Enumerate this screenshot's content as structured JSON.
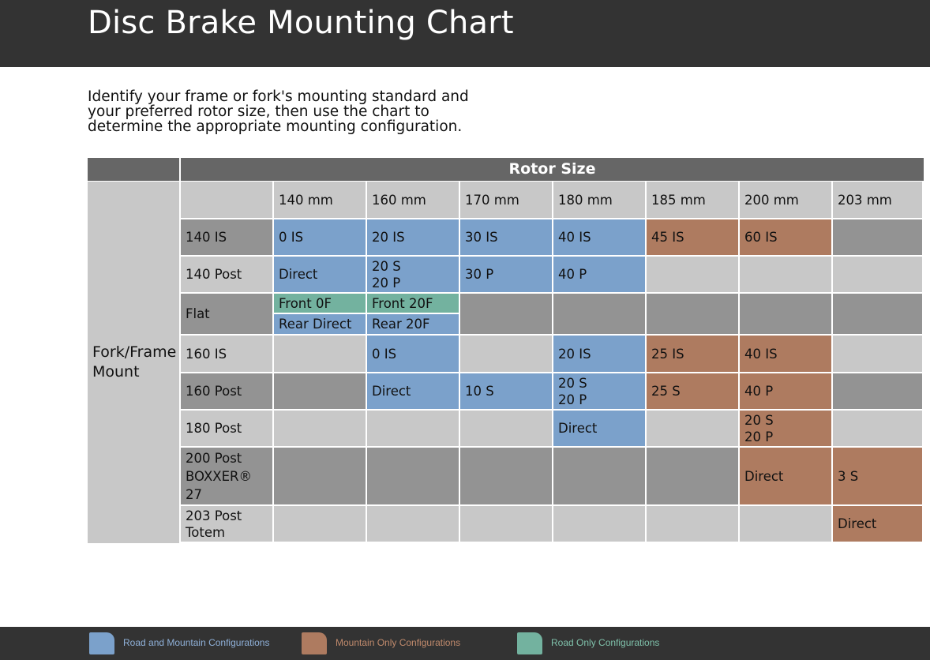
{
  "header": {
    "title": "Disc Brake Mounting Chart"
  },
  "intro": {
    "text": "Identify your frame or fork's mounting standard and your preferred rotor size, then use the chart to determine the appropriate mounting configuration."
  },
  "table": {
    "rotor_header": "Rotor Size",
    "side_header_line1": "Fork/Frame",
    "side_header_line2": "Mount",
    "columns": [
      "140 mm",
      "160 mm",
      "170 mm",
      "180 mm",
      "185 mm",
      "200 mm",
      "203 mm"
    ],
    "rows": [
      {
        "label": "140 IS",
        "cells": [
          {
            "text": "0 IS",
            "type": "road-mountain"
          },
          {
            "text": "20 IS",
            "type": "road-mountain"
          },
          {
            "text": "30 IS",
            "type": "road-mountain"
          },
          {
            "text": "40 IS",
            "type": "road-mountain"
          },
          {
            "text": "45 IS",
            "type": "mountain"
          },
          {
            "text": "60 IS",
            "type": "mountain"
          },
          {
            "text": "",
            "type": "none"
          }
        ]
      },
      {
        "label": "140 Post",
        "cells": [
          {
            "text": "Direct",
            "type": "road-mountain"
          },
          {
            "text": "20 S\n20 P",
            "type": "road-mountain"
          },
          {
            "text": "30 P",
            "type": "road-mountain"
          },
          {
            "text": "40 P",
            "type": "road-mountain"
          },
          {
            "text": "",
            "type": "none"
          },
          {
            "text": "",
            "type": "none"
          },
          {
            "text": "",
            "type": "none"
          }
        ]
      },
      {
        "label": "Flat",
        "cells": [
          {
            "front": "Front 0F",
            "rear": "Rear Direct",
            "front_type": "road",
            "rear_type": "road-mountain"
          },
          {
            "front": "Front 20F",
            "rear": "Rear 20F",
            "front_type": "road",
            "rear_type": "road-mountain"
          },
          {
            "text": "",
            "type": "none"
          },
          {
            "text": "",
            "type": "none"
          },
          {
            "text": "",
            "type": "none"
          },
          {
            "text": "",
            "type": "none"
          },
          {
            "text": "",
            "type": "none"
          }
        ]
      },
      {
        "label": "160 IS",
        "cells": [
          {
            "text": "",
            "type": "none"
          },
          {
            "text": "0 IS",
            "type": "road-mountain"
          },
          {
            "text": "",
            "type": "none"
          },
          {
            "text": "20 IS",
            "type": "road-mountain"
          },
          {
            "text": "25 IS",
            "type": "mountain"
          },
          {
            "text": "40 IS",
            "type": "mountain"
          },
          {
            "text": "",
            "type": "none"
          }
        ]
      },
      {
        "label": "160 Post",
        "cells": [
          {
            "text": "",
            "type": "none"
          },
          {
            "text": "Direct",
            "type": "road-mountain"
          },
          {
            "text": "10 S",
            "type": "road-mountain"
          },
          {
            "text": "20 S\n20 P",
            "type": "road-mountain"
          },
          {
            "text": "25 S",
            "type": "mountain"
          },
          {
            "text": "40 P",
            "type": "mountain"
          },
          {
            "text": "",
            "type": "none"
          }
        ]
      },
      {
        "label": "180 Post",
        "cells": [
          {
            "text": "",
            "type": "none"
          },
          {
            "text": "",
            "type": "none"
          },
          {
            "text": "",
            "type": "none"
          },
          {
            "text": "Direct",
            "type": "road-mountain"
          },
          {
            "text": "",
            "type": "none"
          },
          {
            "text": "20 S\n20 P",
            "type": "mountain"
          },
          {
            "text": "",
            "type": "none"
          }
        ]
      },
      {
        "label": "200 Post\nBOXXER®\n27",
        "cells": [
          {
            "text": "",
            "type": "none"
          },
          {
            "text": "",
            "type": "none"
          },
          {
            "text": "",
            "type": "none"
          },
          {
            "text": "",
            "type": "none"
          },
          {
            "text": "",
            "type": "none"
          },
          {
            "text": "Direct",
            "type": "mountain"
          },
          {
            "text": "3 S",
            "type": "mountain"
          }
        ]
      },
      {
        "label": "203 Post\nTotem",
        "cells": [
          {
            "text": "",
            "type": "none"
          },
          {
            "text": "",
            "type": "none"
          },
          {
            "text": "",
            "type": "none"
          },
          {
            "text": "",
            "type": "none"
          },
          {
            "text": "",
            "type": "none"
          },
          {
            "text": "",
            "type": "none"
          },
          {
            "text": "Direct",
            "type": "mountain"
          }
        ]
      }
    ]
  },
  "legend": [
    {
      "label": "Road and Mountain Configurations",
      "color": "#7ba1cb",
      "text_color": "#8fb0d8"
    },
    {
      "label": "Mountain Only Configurations",
      "color": "#ae7b60",
      "text_color": "#c08a6c"
    },
    {
      "label": "Road Only Configurations",
      "color": "#73b29f",
      "text_color": "#7fc0aa"
    }
  ],
  "colors": {
    "road-mountain": "#7ba1cb",
    "mountain": "#ae7b60",
    "road": "#73b29f",
    "header": "#666666",
    "light": "#c8c8c8",
    "dark": "#939393",
    "bar": "#333333"
  }
}
